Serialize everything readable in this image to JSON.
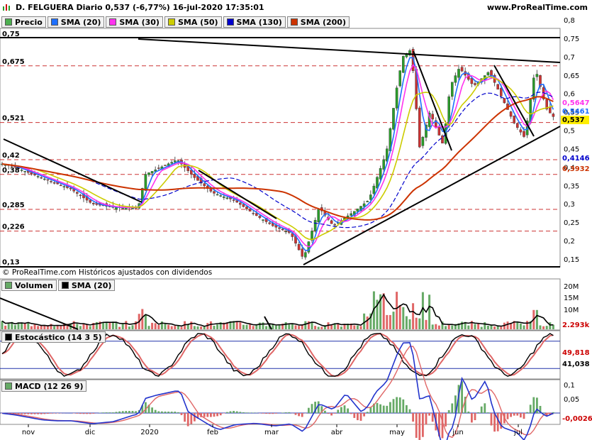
{
  "header": {
    "title": "D. FELGUERA Diario 0,537 (-6,77%) 16-jul-2020 17:35:01",
    "site": "www.ProRealTime.com"
  },
  "legend_main": [
    {
      "label": "Precio",
      "color": "#4caf50"
    },
    {
      "label": "SMA (20)",
      "color": "#1e6fff"
    },
    {
      "label": "SMA (30)",
      "color": "#ff33ee"
    },
    {
      "label": "SMA (50)",
      "color": "#cccc00"
    },
    {
      "label": "SMA (130)",
      "color": "#0000cc"
    },
    {
      "label": "SMA (200)",
      "color": "#cc3300"
    }
  ],
  "copyright": "© ProRealTime.com  Históricos ajustados con dividendos",
  "legend_volume": [
    {
      "label": "Volumen",
      "color": "#66aa66"
    },
    {
      "label": "SMA (20)",
      "color": "#000000"
    }
  ],
  "legend_stoch": [
    {
      "label": "Estocástico (14 3 5)",
      "color": "#000000"
    }
  ],
  "legend_macd": [
    {
      "label": "MACD (12 26 9)",
      "color": "#66aa66"
    }
  ],
  "chart_data": [
    {
      "type": "candlestick",
      "panel": "price",
      "yticks": [
        "0,8",
        "0,75",
        "0,7",
        "0,65",
        "0,6",
        "0,55",
        "0,5",
        "0,45",
        "0,4",
        "0,35",
        "0,3",
        "0,25",
        "0,2",
        "0,15"
      ],
      "ylim": [
        0.13,
        0.8
      ],
      "levels": [
        "0,75",
        "0,675",
        "0,521",
        "0,42",
        "0,38",
        "0,285",
        "0,226",
        "0,13"
      ],
      "last_values": [
        {
          "label": "0,5647",
          "color": "#ff33ee"
        },
        {
          "label": "0,5461",
          "color": "#1e6fff"
        },
        {
          "label": "0,537",
          "color": "#000000",
          "bg": "#ffee00"
        },
        {
          "label": "0,4146",
          "color": "#0000cc"
        },
        {
          "label": "0,3932",
          "color": "#cc3300"
        }
      ],
      "xticks": [
        "nov",
        "dic",
        "2020",
        "feb",
        "mar",
        "abr",
        "may",
        "jun",
        "jul"
      ]
    },
    {
      "type": "bar",
      "panel": "volume",
      "yticks": [
        "20M",
        "15M",
        "10M"
      ],
      "last_values": [
        {
          "label": "2.293k",
          "color": "#cc0000"
        }
      ]
    },
    {
      "type": "line",
      "panel": "stochastic",
      "levels": [
        "80",
        "20"
      ],
      "last_values": [
        {
          "label": "49,818",
          "color": "#cc0000"
        },
        {
          "label": "41,038",
          "color": "#000000"
        }
      ]
    },
    {
      "type": "line",
      "panel": "macd",
      "yticks": [
        "0,1",
        "0,05"
      ],
      "last_values": [
        {
          "label": "-0,0026",
          "color": "#cc0000"
        }
      ]
    }
  ]
}
